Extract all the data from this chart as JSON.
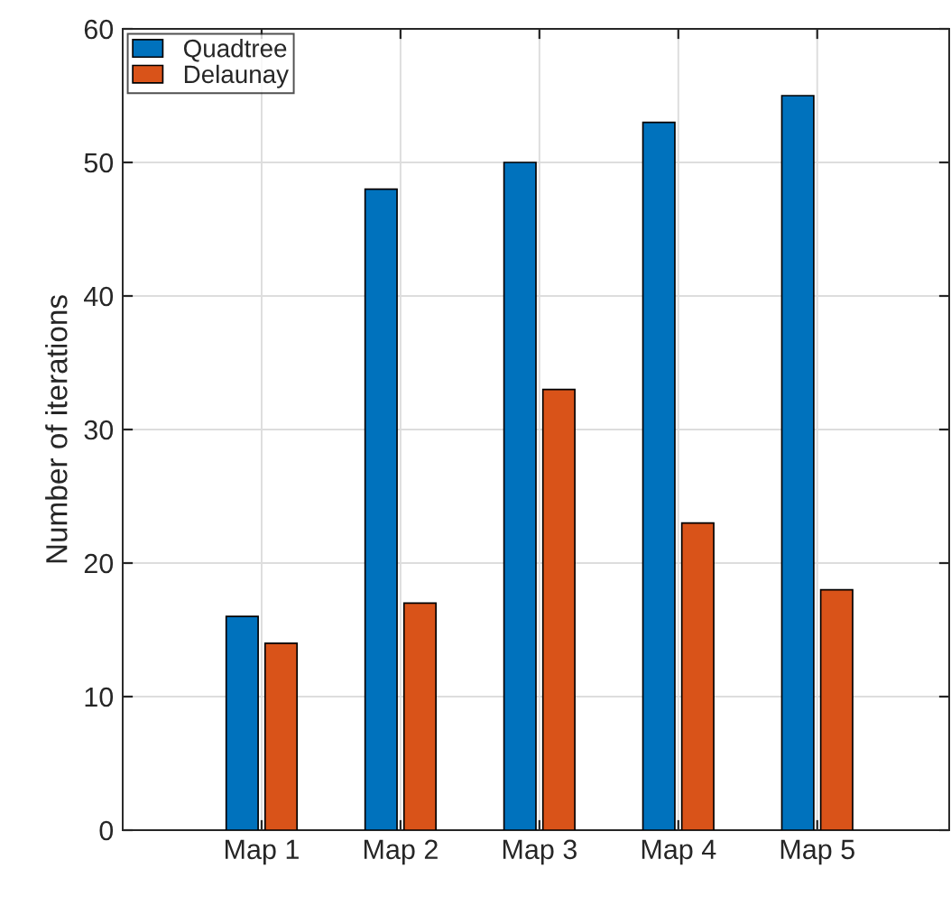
{
  "chart_data": {
    "type": "bar",
    "ylabel": "Number of iterations",
    "categories": [
      "Map 1",
      "Map 2",
      "Map 3",
      "Map 4",
      "Map 5"
    ],
    "series": [
      {
        "name": "Quadtree",
        "color": "#0072bd",
        "values": [
          16,
          48,
          50,
          53,
          55
        ]
      },
      {
        "name": "Delaunay",
        "color": "#d95319",
        "values": [
          14,
          17,
          33,
          23,
          18
        ]
      }
    ],
    "ylim": [
      0,
      60
    ],
    "yticks": [
      0,
      10,
      20,
      30,
      40,
      50,
      60
    ],
    "grid": true,
    "legend": "top left"
  }
}
